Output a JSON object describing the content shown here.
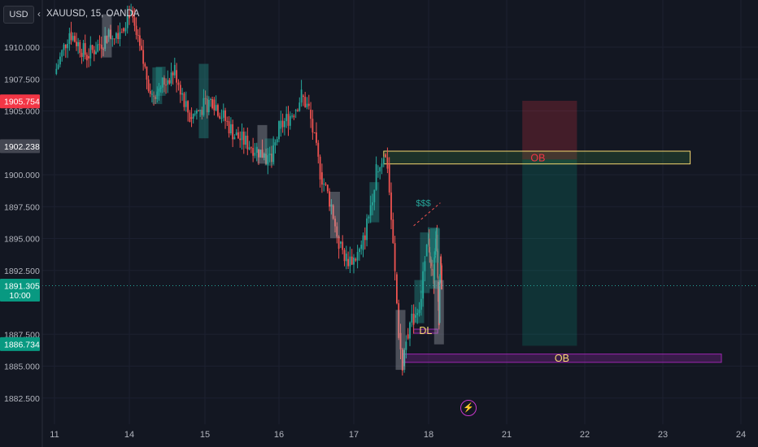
{
  "header": {
    "currency_button": "USD",
    "symbol_info": "XAUUSD, 15, OANDA"
  },
  "icons": {
    "collapse": "chevron-left-icon",
    "event": "lightning-bolt-icon"
  },
  "colors": {
    "background": "#131722",
    "bull": "#26a69a",
    "bear": "#ef5350",
    "price_label_red": "#f23645",
    "price_label_gray": "#434651",
    "price_label_green": "#089981",
    "ob_upper_border": "#f5d76e",
    "ob_lower_border": "#9c27b0",
    "dl_label": "#f5d76e",
    "ob_lower_label": "#f5d76e",
    "ob_upper_label": "#f23645",
    "liquidity_label": "#26a69a",
    "event_icon": "#c837ca"
  },
  "chart_data": {
    "type": "candlestick",
    "symbol": "XAUUSD",
    "interval": "15",
    "x_ticks": [
      "11",
      "14",
      "15",
      "16",
      "17",
      "18",
      "21",
      "22",
      "23",
      "24"
    ],
    "y_ticks": [
      1882.5,
      1885.0,
      1887.5,
      1892.5,
      1895.0,
      1897.5,
      1900.0,
      1905.0,
      1907.5,
      1910.0
    ],
    "y_tick_labels": [
      "1882.500",
      "1885.000",
      "1887.500",
      "1892.500",
      "1895.000",
      "1897.500",
      "1900.000",
      "1905.000",
      "1907.500",
      "1910.000"
    ],
    "ylim": [
      1880.5,
      1913.5
    ],
    "price_labels": [
      {
        "value": 1905.754,
        "text": "1905.754",
        "style": "red"
      },
      {
        "value": 1902.238,
        "text": "1902.238",
        "style": "gray"
      },
      {
        "value": 1891.305,
        "text": "1891.305",
        "sub": "10:00",
        "style": "green"
      },
      {
        "value": 1886.734,
        "text": "1886.734",
        "style": "green"
      }
    ],
    "current_price": 1891.305,
    "path_points": [
      [
        11.0,
        1907.9
      ],
      [
        11.6,
        1911.2
      ],
      [
        12.3,
        1909.3
      ],
      [
        13.1,
        1910.8
      ],
      [
        13.7,
        1911.5
      ],
      [
        14.0,
        1912.8
      ],
      [
        14.3,
        1906.2
      ],
      [
        14.6,
        1908.2
      ],
      [
        14.8,
        1904.5
      ],
      [
        15.1,
        1905.9
      ],
      [
        15.4,
        1903.1
      ],
      [
        15.7,
        1902.0
      ],
      [
        15.9,
        1901.0
      ],
      [
        16.0,
        1903.6
      ],
      [
        16.2,
        1905.0
      ],
      [
        16.3,
        1906.2
      ],
      [
        16.4,
        1905.1
      ],
      [
        16.55,
        1900.2
      ],
      [
        16.7,
        1897.6
      ],
      [
        16.8,
        1894.6
      ],
      [
        16.9,
        1893.4
      ],
      [
        17.0,
        1893.4
      ],
      [
        17.1,
        1894.1
      ],
      [
        17.2,
        1896.8
      ],
      [
        17.3,
        1900.2
      ],
      [
        17.4,
        1901.6
      ],
      [
        17.45,
        1900.8
      ],
      [
        17.5,
        1896.5
      ],
      [
        17.55,
        1892.2
      ],
      [
        17.6,
        1887.6
      ],
      [
        17.65,
        1885.0
      ],
      [
        17.7,
        1887.5
      ],
      [
        17.8,
        1888.8
      ],
      [
        17.9,
        1890.3
      ],
      [
        17.95,
        1893.6
      ],
      [
        18.0,
        1895.0
      ],
      [
        18.05,
        1893.6
      ],
      [
        18.1,
        1892.6
      ],
      [
        18.2,
        1891.8
      ],
      [
        18.25,
        1894.0
      ],
      [
        18.3,
        1895.3
      ],
      [
        18.35,
        1891.6
      ],
      [
        18.4,
        1888.4
      ],
      [
        18.45,
        1893.6
      ],
      [
        18.5,
        1891.3
      ]
    ],
    "zones": [
      {
        "label": "OB",
        "x_start": 17.4,
        "x_end": 23.35,
        "y_low": 1900.85,
        "y_high": 1901.85,
        "color": "upper"
      },
      {
        "label": "OB",
        "x_start": 17.65,
        "x_end": 23.75,
        "y_low": 1885.3,
        "y_high": 1885.95,
        "color": "lower"
      },
      {
        "label": "DL",
        "x_start": 17.8,
        "x_end": 18.35,
        "y_low": 1887.7,
        "y_high": 1887.9,
        "color": "dl"
      }
    ],
    "position": {
      "entry": 1901.2,
      "stop": 1905.8,
      "target": 1886.6,
      "x_start": 21.2,
      "x_end": 21.9
    },
    "liquidity": {
      "label": "$$$",
      "x_start": 17.8,
      "x_end": 18.45,
      "y_start": 1896.0,
      "y_end": 1897.8
    }
  }
}
